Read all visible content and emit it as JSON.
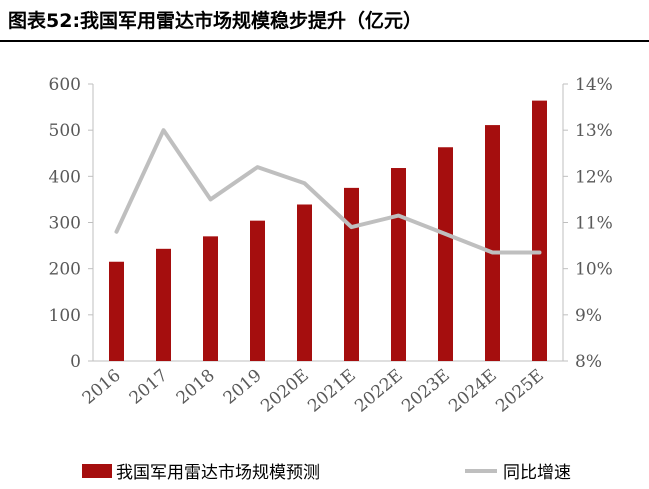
{
  "title": "图表52:我国军用雷达市场规模稳步提升（亿元）",
  "colors": {
    "bar": "#a50e0e",
    "line": "#bfbfbf",
    "axis": "#bfbfbf",
    "text": "#595959"
  },
  "chart_data": {
    "type": "bar",
    "categories": [
      "2016",
      "2017",
      "2018",
      "2019",
      "2020E",
      "2021E",
      "2022E",
      "2023E",
      "2024E",
      "2025E"
    ],
    "series": [
      {
        "name": "我国军用雷达市场规模预测",
        "type": "bar",
        "axis": "left",
        "values": [
          215,
          243,
          270,
          304,
          339,
          375,
          418,
          463,
          511,
          564
        ]
      },
      {
        "name": "同比增速",
        "type": "line",
        "axis": "right",
        "values": [
          10.8,
          13.0,
          11.5,
          12.2,
          11.85,
          10.9,
          11.15,
          10.75,
          10.35,
          10.35
        ]
      }
    ],
    "y_left": {
      "min": 0,
      "max": 600,
      "ticks": [
        "0",
        "100",
        "200",
        "300",
        "400",
        "500",
        "600"
      ]
    },
    "y_right": {
      "min": 8,
      "max": 14,
      "ticks": [
        "8%",
        "9%",
        "10%",
        "11%",
        "12%",
        "13%",
        "14%"
      ]
    },
    "grid": false,
    "legend": "bottom"
  }
}
